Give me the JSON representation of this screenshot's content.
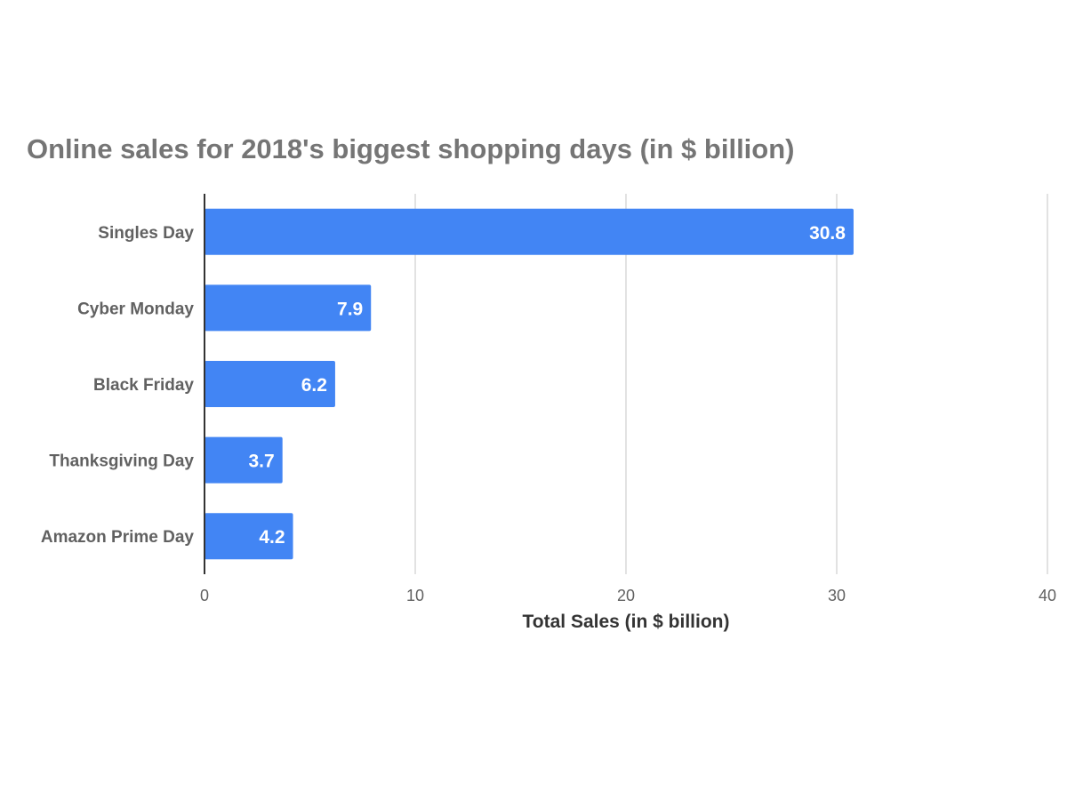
{
  "chart_data": {
    "type": "bar",
    "orientation": "horizontal",
    "title": "Online sales for 2018's biggest shopping days (in $ billion)",
    "xlabel": "Total Sales (in $ billion)",
    "ylabel": "",
    "categories": [
      "Singles Day",
      "Cyber Monday",
      "Black Friday",
      "Thanksgiving Day",
      "Amazon Prime Day"
    ],
    "values": [
      30.8,
      7.9,
      6.2,
      3.7,
      4.2
    ],
    "data_labels": [
      "30.8",
      "7.9",
      "6.2",
      "3.7",
      "4.2"
    ],
    "xlim": [
      0,
      40
    ],
    "xticks": [
      0,
      10,
      20,
      30,
      40
    ],
    "xtick_labels": [
      "0",
      "10",
      "20",
      "30",
      "40"
    ],
    "grid": true,
    "legend": "none",
    "bar_color": "#4285f4"
  }
}
